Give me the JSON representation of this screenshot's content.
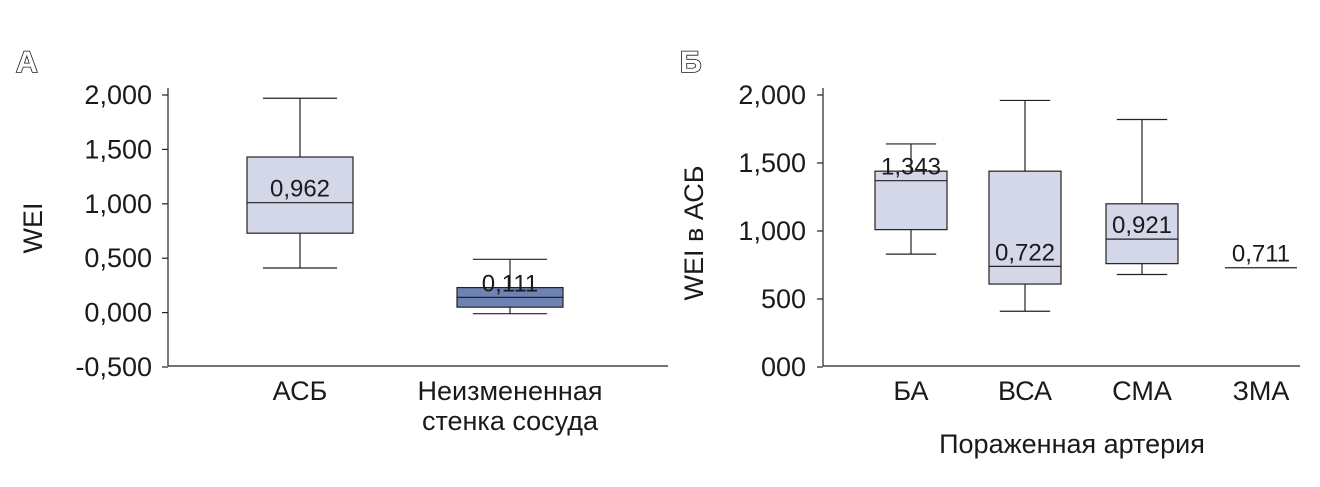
{
  "colors": {
    "box_light": "#d3d7e8",
    "box_dark": "#6f82b4",
    "line": "#222222"
  },
  "chart_data": [
    {
      "panel": "А",
      "type": "box",
      "ylabel": "WEI",
      "xlabel": "",
      "ylim": [
        -0.5,
        2.0
      ],
      "yticks": [
        "2,000",
        "1,500",
        "1,000",
        "0,500",
        "0,000",
        "-0,500"
      ],
      "categories": [
        "АСБ",
        "Неизмененная стенка сосуда"
      ],
      "category_lines": [
        [
          "АСБ"
        ],
        [
          "Неизмененная",
          "стенка сосуда"
        ]
      ],
      "boxes": [
        {
          "category": "АСБ",
          "min": 0.41,
          "q1": 0.73,
          "median": 1.01,
          "q3": 1.43,
          "max": 1.97,
          "label": "0,962",
          "color": "#d3d7e8"
        },
        {
          "category": "Неизмененная стенка сосуда",
          "min": -0.01,
          "q1": 0.05,
          "median": 0.14,
          "q3": 0.23,
          "max": 0.49,
          "label": "0,111",
          "color": "#6f82b4"
        }
      ]
    },
    {
      "panel": "Б",
      "type": "box",
      "ylabel": "WEI в АСБ",
      "xlabel": "Пораженная артерия",
      "ylim": [
        0,
        2000
      ],
      "yticks": [
        "2,000",
        "1,500",
        "1,000",
        "500",
        "000"
      ],
      "categories": [
        "БА",
        "ВСА",
        "СМА",
        "ЗМА"
      ],
      "category_lines": [
        [
          "БА"
        ],
        [
          "ВСА"
        ],
        [
          "СМА"
        ],
        [
          "ЗМА"
        ]
      ],
      "boxes": [
        {
          "category": "БА",
          "min": 830,
          "q1": 1010,
          "median": 1370,
          "q3": 1440,
          "max": 1640,
          "label": "1,343",
          "color": "#d3d7e8"
        },
        {
          "category": "ВСА",
          "min": 410,
          "q1": 610,
          "median": 740,
          "q3": 1440,
          "max": 1960,
          "label": "0,722",
          "color": "#d3d7e8"
        },
        {
          "category": "СМА",
          "min": 680,
          "q1": 760,
          "median": 940,
          "q3": 1200,
          "max": 1820,
          "label": "0,921",
          "color": "#d3d7e8"
        },
        {
          "category": "ЗМА",
          "min": 730,
          "q1": 730,
          "median": 730,
          "q3": 730,
          "max": 730,
          "label": "0,711",
          "color": "#d3d7e8"
        }
      ]
    }
  ]
}
